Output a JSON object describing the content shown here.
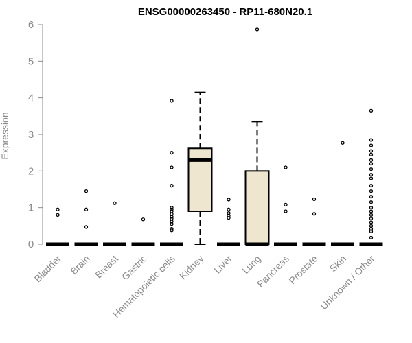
{
  "chart_data": {
    "type": "boxplot",
    "title": "ENSG00000263450 - RP11-680N20.1",
    "xlabel": "",
    "ylabel": "Expression",
    "ylim": [
      0,
      6
    ],
    "yticks": [
      0,
      1,
      2,
      3,
      4,
      5,
      6
    ],
    "grid": false,
    "box_fill": "#efe6cf",
    "categories": [
      "Bladder",
      "Brain",
      "Breast",
      "Gastric",
      "Hematopoietic cells",
      "Kidney",
      "Liver",
      "Lung",
      "Pancreas",
      "Prostate",
      "Skin",
      "Unknown / Other"
    ],
    "boxes": [
      {
        "category": "Bladder",
        "min": 0,
        "q1": 0,
        "median": 0,
        "q3": 0,
        "max": 0,
        "outliers": [
          0.95,
          0.8
        ]
      },
      {
        "category": "Brain",
        "min": 0,
        "q1": 0,
        "median": 0,
        "q3": 0,
        "max": 0,
        "outliers": [
          1.45,
          0.95,
          0.47
        ]
      },
      {
        "category": "Breast",
        "min": 0,
        "q1": 0,
        "median": 0,
        "q3": 0,
        "max": 0,
        "outliers": [
          1.12
        ]
      },
      {
        "category": "Gastric",
        "min": 0,
        "q1": 0,
        "median": 0,
        "q3": 0,
        "max": 0,
        "outliers": [
          0.68
        ]
      },
      {
        "category": "Hematopoietic cells",
        "min": 0,
        "q1": 0,
        "median": 0,
        "q3": 0,
        "max": 0,
        "outliers": [
          3.92,
          2.5,
          2.1,
          1.6,
          1.0,
          0.95,
          0.9,
          0.82,
          0.75,
          0.7,
          0.62,
          0.55,
          0.42,
          0.38
        ]
      },
      {
        "category": "Kidney",
        "min": 0,
        "q1": 0.9,
        "median": 2.3,
        "q3": 2.62,
        "max": 4.15,
        "outliers": []
      },
      {
        "category": "Liver",
        "min": 0,
        "q1": 0,
        "median": 0,
        "q3": 0,
        "max": 0,
        "outliers": [
          1.22,
          0.95,
          0.85,
          0.78,
          0.72
        ]
      },
      {
        "category": "Lung",
        "min": 0,
        "q1": 0,
        "median": 0,
        "q3": 2.0,
        "max": 3.35,
        "outliers": [
          5.87
        ]
      },
      {
        "category": "Pancreas",
        "min": 0,
        "q1": 0,
        "median": 0,
        "q3": 0,
        "max": 0,
        "outliers": [
          2.1,
          1.08,
          0.9
        ]
      },
      {
        "category": "Prostate",
        "min": 0,
        "q1": 0,
        "median": 0,
        "q3": 0,
        "max": 0,
        "outliers": [
          1.23,
          0.83
        ]
      },
      {
        "category": "Skin",
        "min": 0,
        "q1": 0,
        "median": 0,
        "q3": 0,
        "max": 0,
        "outliers": [
          2.77
        ]
      },
      {
        "category": "Unknown / Other",
        "min": 0,
        "q1": 0,
        "median": 0,
        "q3": 0,
        "max": 0,
        "outliers": [
          3.65,
          2.85,
          2.7,
          2.55,
          2.45,
          2.3,
          2.2,
          2.05,
          1.9,
          1.8,
          1.6,
          1.45,
          1.3,
          1.15,
          1.0,
          0.9,
          0.8,
          0.7,
          0.6,
          0.5,
          0.42,
          0.35,
          0.18
        ]
      }
    ]
  }
}
